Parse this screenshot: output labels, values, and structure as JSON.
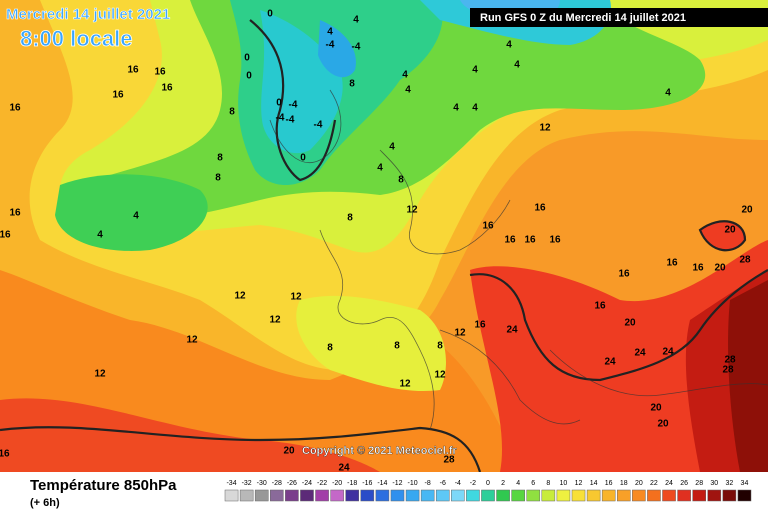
{
  "header": {
    "date": "Mercredi 14 juillet 2021",
    "time": "8:00 locale",
    "run": "Run GFS 0 Z du Mercredi 14 juillet 2021"
  },
  "footer": {
    "title": "Température 850hPa",
    "step": "(+ 6h)",
    "copyright": "Copyright © 2021 Meteociel.fr"
  },
  "scale": {
    "values": [
      -34,
      -32,
      -30,
      -28,
      -26,
      -24,
      -22,
      -20,
      -18,
      -16,
      -14,
      -12,
      -10,
      -8,
      -6,
      -4,
      -2,
      0,
      2,
      4,
      6,
      8,
      10,
      12,
      14,
      16,
      18,
      20,
      22,
      24,
      26,
      28,
      30,
      32,
      34
    ],
    "colors": [
      "#d8d8d8",
      "#b8b8b8",
      "#989898",
      "#8a6a9a",
      "#7a3e8c",
      "#5c2a78",
      "#a23ea8",
      "#c468c8",
      "#4030a0",
      "#2a4cc8",
      "#2c6ee0",
      "#3090ee",
      "#38a8f0",
      "#48b8f4",
      "#5ec8f6",
      "#7cd8f8",
      "#40d8e0",
      "#2ccf9a",
      "#30c850",
      "#58d640",
      "#90e040",
      "#c8ec3c",
      "#eef040",
      "#f8e038",
      "#f8c830",
      "#f8b42a",
      "#f8a028",
      "#f88a22",
      "#f4701e",
      "#ee4a20",
      "#e03020",
      "#c41c12",
      "#a01410",
      "#7a0c08",
      "#200000"
    ]
  },
  "map_labels": [
    16,
    16,
    16,
    16,
    16,
    16,
    16,
    0,
    0,
    0,
    -4,
    -4,
    -4,
    0,
    -4,
    4,
    -4,
    -4,
    4,
    0,
    4,
    4,
    4,
    4,
    4,
    4,
    8,
    4,
    4,
    4,
    4,
    8,
    12,
    8,
    8,
    8,
    4,
    4,
    8,
    12,
    16,
    16,
    16,
    16,
    16,
    20,
    20,
    28,
    20,
    16,
    16,
    16,
    16,
    20,
    24,
    16,
    24,
    24,
    24,
    28,
    28,
    20,
    20,
    12,
    12,
    12,
    12,
    12,
    12,
    12,
    8,
    8,
    8,
    12,
    24,
    28,
    20,
    16
  ]
}
